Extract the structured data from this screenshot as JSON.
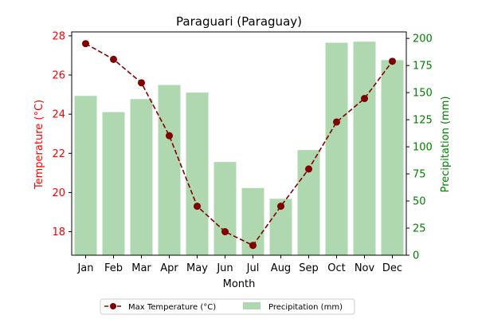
{
  "chart_data": {
    "type": "bar+line",
    "title": "Paraguari (Paraguay)",
    "xlabel": "Month",
    "categories": [
      "Jan",
      "Feb",
      "Mar",
      "Apr",
      "May",
      "Jun",
      "Jul",
      "Aug",
      "Sep",
      "Oct",
      "Nov",
      "Dec"
    ],
    "left_axis": {
      "label": "Temperature (°C)",
      "color": "#ff0000",
      "ylim": [
        16.8,
        28.2
      ],
      "ticks": [
        18,
        20,
        22,
        24,
        26,
        28
      ]
    },
    "right_axis": {
      "label": "Precipitation (mm)",
      "color": "#008000",
      "ylim": [
        0,
        206
      ],
      "ticks": [
        0,
        25,
        50,
        75,
        100,
        125,
        150,
        175,
        200
      ]
    },
    "series": [
      {
        "name": "Max Temperature (°C)",
        "kind": "line",
        "axis": "left",
        "color": "#800000",
        "line_style": "dashed",
        "marker": "circle",
        "values": [
          27.6,
          26.8,
          25.6,
          22.9,
          19.3,
          18.0,
          17.3,
          19.3,
          21.2,
          23.6,
          24.8,
          26.7
        ]
      },
      {
        "name": "Precipitation (mm)",
        "kind": "bar",
        "axis": "right",
        "color": "#b0d8b0",
        "values": [
          147,
          132,
          144,
          157,
          150,
          86,
          62,
          52,
          97,
          196,
          197,
          180
        ]
      }
    ],
    "legend": {
      "placement": "bottom-center",
      "columns": 2
    },
    "grid": false
  }
}
